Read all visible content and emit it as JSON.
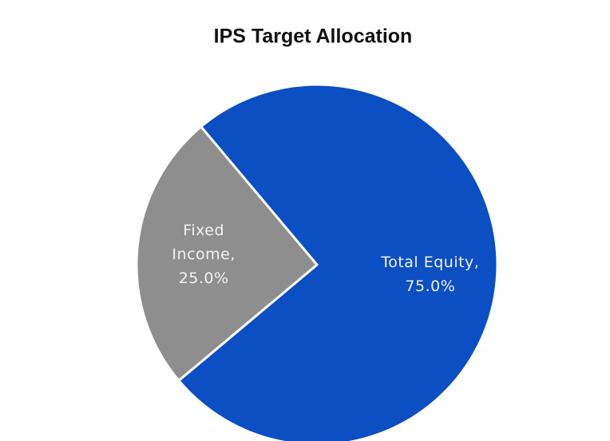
{
  "chart_data": {
    "type": "pie",
    "title": "IPS Target Allocation",
    "categories": [
      "Total Equity",
      "Fixed Income"
    ],
    "label_lines": [
      [
        "Total Equity,"
      ],
      [
        "Fixed",
        "Income,"
      ]
    ],
    "values": [
      75,
      25
    ],
    "value_labels": [
      "75.0%",
      "25.0%"
    ],
    "colors": [
      "#0b4fc3",
      "#8e8e8e"
    ]
  }
}
